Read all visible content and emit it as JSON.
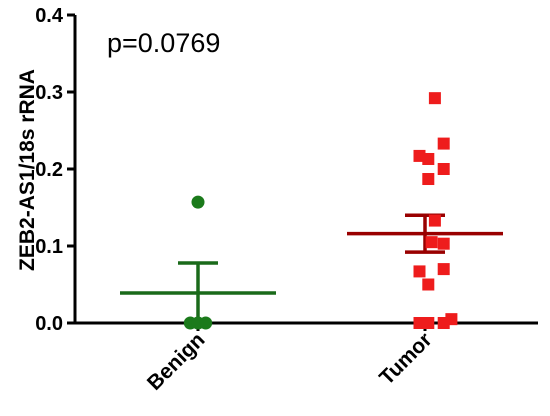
{
  "chart_data": {
    "type": "scatter",
    "ylabel": "ZEB2-AS1/18s rRNA",
    "ylim": [
      0,
      0.4
    ],
    "yticks": [
      0.0,
      0.1,
      0.2,
      0.3,
      0.4
    ],
    "ytick_labels": [
      "0.0",
      "0.1",
      "0.2",
      "0.3",
      "0.4"
    ],
    "categories": [
      "Benign",
      "Tumor"
    ],
    "annotation": "p=0.0769",
    "series": [
      {
        "category": "Benign",
        "marker": "circle",
        "color": "#1b7a1b",
        "points": [
          {
            "offset": -0.35,
            "y": 0.0
          },
          {
            "offset": 0.0,
            "y": 0.0
          },
          {
            "offset": 0.35,
            "y": 0.0
          },
          {
            "offset": 0.0,
            "y": 0.157
          }
        ],
        "mean": 0.039,
        "sem_low": 0.0,
        "sem_high": 0.078
      },
      {
        "category": "Tumor",
        "marker": "square",
        "color": "#ee1c1c",
        "points": [
          {
            "offset": 0.45,
            "y": 0.292
          },
          {
            "offset": -0.25,
            "y": 0.217
          },
          {
            "offset": 0.15,
            "y": 0.213
          },
          {
            "offset": 0.85,
            "y": 0.233
          },
          {
            "offset": 0.85,
            "y": 0.2
          },
          {
            "offset": 0.15,
            "y": 0.187
          },
          {
            "offset": 0.45,
            "y": 0.133
          },
          {
            "offset": 0.3,
            "y": 0.105
          },
          {
            "offset": 0.85,
            "y": 0.103
          },
          {
            "offset": -0.25,
            "y": 0.067
          },
          {
            "offset": 0.85,
            "y": 0.07
          },
          {
            "offset": 0.15,
            "y": 0.05
          },
          {
            "offset": -0.25,
            "y": 0.0
          },
          {
            "offset": 0.15,
            "y": 0.0
          },
          {
            "offset": 0.85,
            "y": 0.0
          },
          {
            "offset": 1.2,
            "y": 0.005
          }
        ],
        "mean": 0.116,
        "sem_low": 0.092,
        "sem_high": 0.14
      }
    ],
    "stat_color": {
      "Benign": "#1a6a1a",
      "Tumor": "#990000"
    }
  }
}
